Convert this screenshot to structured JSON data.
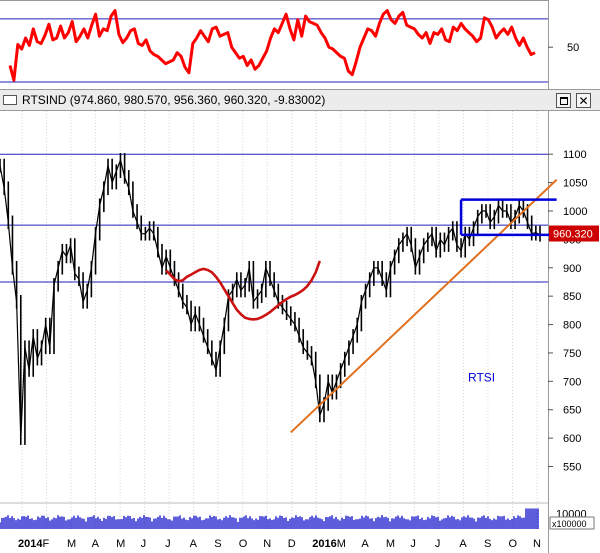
{
  "window": {
    "title": "RTSIND (974.860, 980.570, 956.360, 960.320, -9.83002)",
    "buttons": {
      "maximize": "maximize-icon",
      "close": "✕"
    }
  },
  "colors": {
    "price": "#000000",
    "oscillator": "#ff0000",
    "moving_average": "#cc1111",
    "trendline": "#e07020",
    "channel": "#0000dd",
    "level_lines": "#2222bb",
    "volume": "#1a1acc",
    "last_price_badge": "#cc0000"
  },
  "chart_data": [
    {
      "type": "line",
      "role": "oscillator",
      "ylim": [
        12,
        95
      ],
      "y_ticks": [
        50
      ],
      "reference_levels": [
        12,
        81
      ],
      "series": [
        {
          "values": [
            30,
            14,
            53,
            48,
            60,
            52,
            70,
            56,
            54,
            63,
            75,
            58,
            60,
            73,
            60,
            66,
            78,
            56,
            62,
            70,
            60,
            74,
            86,
            62,
            70,
            68,
            84,
            90,
            64,
            55,
            60,
            68,
            70,
            54,
            52,
            58,
            46,
            42,
            40,
            36,
            32,
            34,
            36,
            44,
            40,
            28,
            22,
            54,
            60,
            68,
            62,
            56,
            70,
            72,
            62,
            64,
            66,
            50,
            44,
            38,
            40,
            30,
            36,
            26,
            30,
            38,
            46,
            60,
            70,
            66,
            76,
            86,
            70,
            58,
            80,
            62,
            84,
            78,
            76,
            74,
            66,
            60,
            50,
            48,
            44,
            40,
            38,
            24,
            20,
            34,
            50,
            60,
            70,
            68,
            62,
            76,
            86,
            90,
            80,
            76,
            84,
            88,
            74,
            72,
            70,
            64,
            60,
            66,
            54,
            66,
            64,
            70,
            58,
            56,
            72,
            68,
            76,
            70,
            66,
            62,
            56,
            60,
            82,
            80,
            72,
            60,
            66,
            70,
            64,
            72,
            60,
            52,
            60,
            50,
            42,
            44
          ]
        }
      ]
    },
    {
      "type": "line",
      "role": "price",
      "title": "RTSIND",
      "annotations": [
        "RTSI"
      ],
      "ylim": [
        528,
        1125
      ],
      "y_ticks": [
        550,
        600,
        650,
        700,
        750,
        800,
        850,
        900,
        950,
        1000,
        1050,
        1100
      ],
      "x_labels": [
        "2014",
        "F",
        "M",
        "A",
        "M",
        "J",
        "J",
        "A",
        "S",
        "O",
        "N",
        "D",
        "2016",
        "M",
        "A",
        "M",
        "J",
        "J",
        "A",
        "S",
        "O",
        "N"
      ],
      "horizontal_levels": [
        1100,
        975,
        875
      ],
      "last_price": "960.320",
      "close": [
        1080,
        1040,
        980,
        900,
        840,
        600,
        760,
        720,
        780,
        740,
        760,
        800,
        760,
        870,
        900,
        930,
        920,
        940,
        890,
        880,
        840,
        860,
        900,
        960,
        1010,
        1040,
        1080,
        1050,
        1070,
        1090,
        1060,
        1040,
        1000,
        980,
        960,
        960,
        970,
        960,
        930,
        900,
        920,
        900,
        880,
        860,
        840,
        830,
        800,
        820,
        800,
        780,
        760,
        740,
        720,
        760,
        800,
        850,
        860,
        880,
        860,
        870,
        900,
        840,
        850,
        860,
        900,
        880,
        860,
        840,
        830,
        820,
        810,
        800,
        780,
        760,
        750,
        740,
        700,
        640,
        660,
        700,
        680,
        700,
        720,
        740,
        760,
        780,
        800,
        840,
        860,
        880,
        900,
        900,
        880,
        860,
        900,
        920,
        940,
        950,
        960,
        940,
        900,
        920,
        940,
        950,
        960,
        930,
        950,
        940,
        960,
        970,
        940,
        930,
        960,
        950,
        970,
        990,
        1000,
        1000,
        980,
        990,
        1010,
        1000,
        1000,
        980,
        990,
        1010,
        1000,
        980,
        960,
        962,
        958
      ],
      "series": [
        {
          "values": [
            1080,
            1040,
            980,
            900,
            840,
            600,
            760,
            720,
            780,
            740,
            760,
            800,
            760,
            870,
            900,
            930,
            920,
            940,
            890,
            880,
            840,
            860,
            900,
            960,
            1010,
            1040,
            1080,
            1050,
            1070,
            1090,
            1060,
            1040,
            1000,
            980,
            960,
            960,
            970,
            960,
            930,
            900,
            920,
            900,
            880,
            860,
            840,
            830,
            800,
            820,
            800,
            780,
            760,
            740,
            720,
            760,
            800,
            850,
            860,
            880,
            860,
            870,
            900,
            840,
            850,
            860,
            900,
            880,
            860,
            840,
            830,
            820,
            810,
            800,
            780,
            760,
            750,
            740,
            700,
            640,
            660,
            700,
            680,
            700,
            720,
            740,
            760,
            780,
            800,
            840,
            860,
            880,
            900,
            900,
            880,
            860,
            900,
            920,
            940,
            950,
            960,
            940,
            900,
            920,
            940,
            950,
            960,
            930,
            950,
            940,
            960,
            970,
            940,
            930,
            960,
            950,
            970,
            990,
            1000,
            1000,
            980,
            990,
            1010,
            1000,
            1000,
            980,
            990,
            1010,
            1000,
            980,
            960,
            962,
            958
          ]
        },
        {
          "x_start": 40,
          "values": [
            895,
            888,
            880,
            876,
            878,
            884,
            888,
            892,
            896,
            898,
            896,
            892,
            884,
            874,
            862,
            850,
            838,
            826,
            818,
            812,
            810,
            809,
            810,
            813,
            817,
            822,
            828,
            834,
            840,
            845,
            849,
            852,
            856,
            861,
            868,
            878,
            892,
            912
          ]
        }
      ],
      "trendline": {
        "from": [
          70,
          610
        ],
        "to": [
          134,
          1055
        ]
      },
      "channel": {
        "x": [
          111,
          134
        ],
        "upper": 1020,
        "lower": 958
      }
    },
    {
      "type": "bar",
      "role": "volume",
      "unit_label": "x100000",
      "y_ticks": [
        10000
      ],
      "ylim": [
        0,
        15000
      ]
    }
  ]
}
